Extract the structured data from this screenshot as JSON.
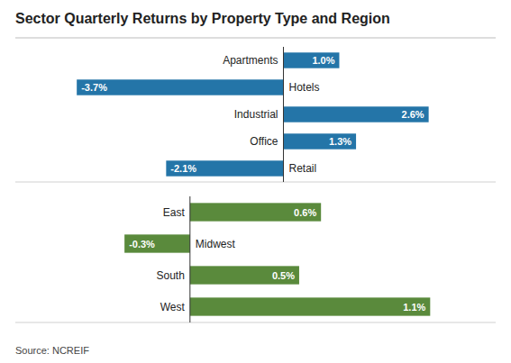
{
  "chart_data": [
    {
      "type": "bar",
      "orientation": "horizontal",
      "title": "Sector Quarterly Returns by Property Type and Region",
      "categories": [
        "Apartments",
        "Hotels",
        "Industrial",
        "Office",
        "Retail"
      ],
      "values": [
        1.0,
        -3.7,
        2.6,
        1.3,
        -2.1
      ],
      "value_labels": [
        "1.0%",
        "-3.7%",
        "2.6%",
        "1.3%",
        "-2.1%"
      ],
      "color": "#2475a8",
      "xlim": [
        -4.8,
        3.8
      ],
      "data_labels": true,
      "grid": false
    },
    {
      "type": "bar",
      "orientation": "horizontal",
      "categories": [
        "East",
        "Midwest",
        "South",
        "West"
      ],
      "values": [
        0.6,
        -0.3,
        0.5,
        1.1
      ],
      "value_labels": [
        "0.6%",
        "-0.3%",
        "0.5%",
        "1.1%"
      ],
      "color": "#5a8a3c",
      "xlim": [
        -0.8,
        1.4
      ],
      "data_labels": true,
      "grid": false,
      "annotations": [
        "Source: NCREIF"
      ]
    }
  ]
}
